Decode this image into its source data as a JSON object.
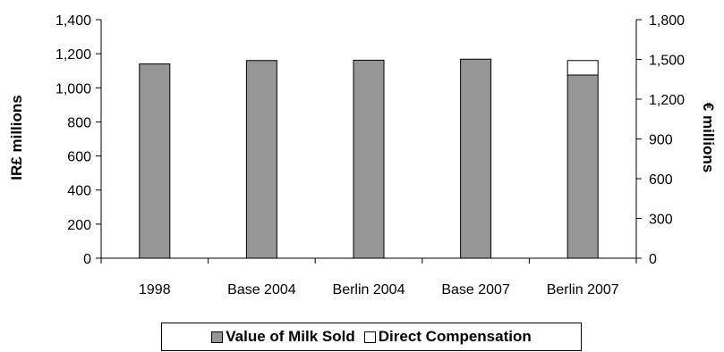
{
  "chart_data": {
    "type": "bar",
    "stacked": true,
    "categories": [
      "1998",
      "Base 2004",
      "Berlin 2004",
      "Base 2007",
      "Berlin 2007"
    ],
    "series": [
      {
        "name": "Value of Milk Sold",
        "color": "#969696",
        "values": [
          1140,
          1160,
          1162,
          1168,
          1075
        ]
      },
      {
        "name": "Direct Compensation",
        "color": "#ffffff",
        "values": [
          0,
          0,
          0,
          0,
          85
        ]
      }
    ],
    "ylabel": "IR£ millions",
    "ylim": [
      0,
      1400
    ],
    "yticks": [
      0,
      200,
      400,
      600,
      800,
      1000,
      1200,
      1400
    ],
    "ytick_labels": [
      "0",
      "200",
      "400",
      "600",
      "800",
      "1,000",
      "1,200",
      "1,400"
    ],
    "y2label": "€ millions",
    "y2lim": [
      0,
      1800
    ],
    "y2ticks": [
      0,
      300,
      600,
      900,
      1200,
      1500,
      1800
    ],
    "y2tick_labels": [
      "0",
      "300",
      "600",
      "900",
      "1,200",
      "1,500",
      "1,800"
    ],
    "legend_position": "bottom",
    "grid": false
  }
}
